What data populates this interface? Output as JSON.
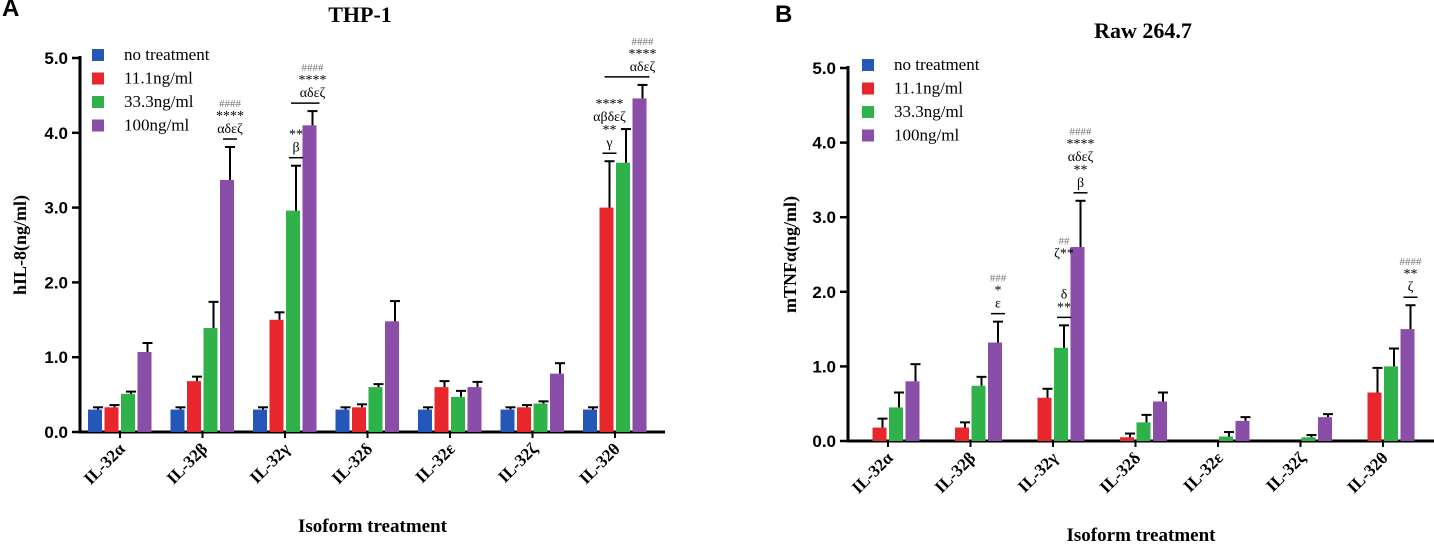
{
  "colors": {
    "no_treatment": "#2457b8",
    "c11": "#e8272c",
    "c33": "#2fb24a",
    "c100": "#8a4ea8",
    "axis": "#000000",
    "sig": "#000000",
    "hash": "#777777"
  },
  "chart_data": [
    {
      "type": "bar",
      "panel_letter": "A",
      "title": "THP-1",
      "xlabel": "Isoform treatment",
      "ylabel": "hIL-8(ng/ml)",
      "ylim": [
        0,
        5
      ],
      "yticks": [
        "0.0",
        "1.0",
        "2.0",
        "3.0",
        "4.0",
        "5.0"
      ],
      "legend_position": "top-left",
      "categories": [
        "IL-32α",
        "IL-32β",
        "IL-32γ",
        "IL-32δ",
        "IL-32ε",
        "IL-32ζ",
        "IL-32θ"
      ],
      "series": [
        {
          "name": "no treatment",
          "color_key": "no_treatment",
          "values": [
            0.3,
            0.3,
            0.3,
            0.3,
            0.3,
            0.3,
            0.3
          ],
          "errors": [
            0.03,
            0.03,
            0.03,
            0.03,
            0.03,
            0.03,
            0.03
          ]
        },
        {
          "name": "11.1ng/ml",
          "color_key": "c11",
          "values": [
            0.33,
            0.68,
            1.5,
            0.33,
            0.6,
            0.33,
            3.0
          ],
          "errors": [
            0.03,
            0.06,
            0.1,
            0.04,
            0.08,
            0.03,
            0.62
          ]
        },
        {
          "name": "33.3ng/ml",
          "color_key": "c33",
          "values": [
            0.51,
            1.39,
            2.96,
            0.6,
            0.47,
            0.38,
            3.6
          ],
          "errors": [
            0.03,
            0.35,
            0.6,
            0.04,
            0.08,
            0.03,
            0.45
          ]
        },
        {
          "name": "100ng/ml",
          "color_key": "c100",
          "values": [
            1.07,
            3.37,
            4.1,
            1.48,
            0.6,
            0.78,
            4.46
          ],
          "errors": [
            0.12,
            0.44,
            0.19,
            0.27,
            0.07,
            0.14,
            0.18
          ]
        }
      ],
      "annotations": [
        {
          "category": 1,
          "series": 3,
          "lines": [
            "####",
            "****",
            "αδεζ"
          ],
          "bar_under": true
        },
        {
          "category": 2,
          "series": 2,
          "lines": [
            "**",
            "β"
          ],
          "bar_under": true
        },
        {
          "category": 2,
          "series": 3,
          "lines": [
            "####",
            "****",
            "αδεζ"
          ],
          "bracket_to_series": 2
        },
        {
          "category": 6,
          "series": 1,
          "lines": [
            "****",
            "αβδεζ",
            "**",
            "γ"
          ],
          "bar_under": true
        },
        {
          "category": 6,
          "series": 3,
          "lines": [
            "####",
            "****",
            "αδεζ"
          ],
          "bracket_to_series": 1,
          "bar_under": true
        }
      ]
    },
    {
      "type": "bar",
      "panel_letter": "B",
      "title": "Raw 264.7",
      "xlabel": "Isoform treatment",
      "ylabel": "mTNFα(ng/ml)",
      "ylim": [
        0,
        5
      ],
      "yticks": [
        "0.0",
        "1.0",
        "2.0",
        "3.0",
        "4.0",
        "5.0"
      ],
      "legend_position": "top-left",
      "categories": [
        "IL-32α",
        "IL-32β",
        "IL-32γ",
        "IL-32δ",
        "IL-32ε",
        "IL-32ζ",
        "IL-32θ"
      ],
      "series": [
        {
          "name": "no treatment",
          "color_key": "no_treatment",
          "values": [
            0,
            0,
            0,
            0,
            0,
            0,
            0
          ],
          "errors": [
            0,
            0,
            0,
            0,
            0,
            0,
            0
          ]
        },
        {
          "name": "11.1ng/ml",
          "color_key": "c11",
          "values": [
            0.18,
            0.18,
            0.58,
            0.05,
            0,
            0,
            0.65
          ],
          "errors": [
            0.12,
            0.07,
            0.12,
            0.05,
            0,
            0,
            0.33
          ]
        },
        {
          "name": "33.3ng/ml",
          "color_key": "c33",
          "values": [
            0.45,
            0.74,
            1.25,
            0.25,
            0.06,
            0.05,
            1.0
          ],
          "errors": [
            0.2,
            0.12,
            0.3,
            0.1,
            0.06,
            0.03,
            0.24
          ]
        },
        {
          "name": "100ng/ml",
          "color_key": "c100",
          "values": [
            0.8,
            1.32,
            2.6,
            0.53,
            0.27,
            0.32,
            1.5
          ],
          "errors": [
            0.23,
            0.28,
            0.62,
            0.12,
            0.05,
            0.04,
            0.32
          ]
        }
      ],
      "annotations": [
        {
          "category": 1,
          "series": 3,
          "lines": [
            "###",
            "*",
            "ε"
          ],
          "bar_under": true
        },
        {
          "category": 2,
          "series": 2,
          "lines": [
            "δ",
            "**"
          ],
          "bar_under": true
        },
        {
          "category": 2,
          "series": 3,
          "lines": [
            "####",
            "****",
            "αδεζ",
            "**",
            "β"
          ],
          "bar_under": true
        },
        {
          "category": 2,
          "series": 2,
          "lines": [
            "##",
            "ζ**"
          ],
          "stack_above": true
        },
        {
          "category": 6,
          "series": 3,
          "lines": [
            "####",
            "**",
            "ζ"
          ],
          "bar_under": true
        }
      ]
    }
  ]
}
